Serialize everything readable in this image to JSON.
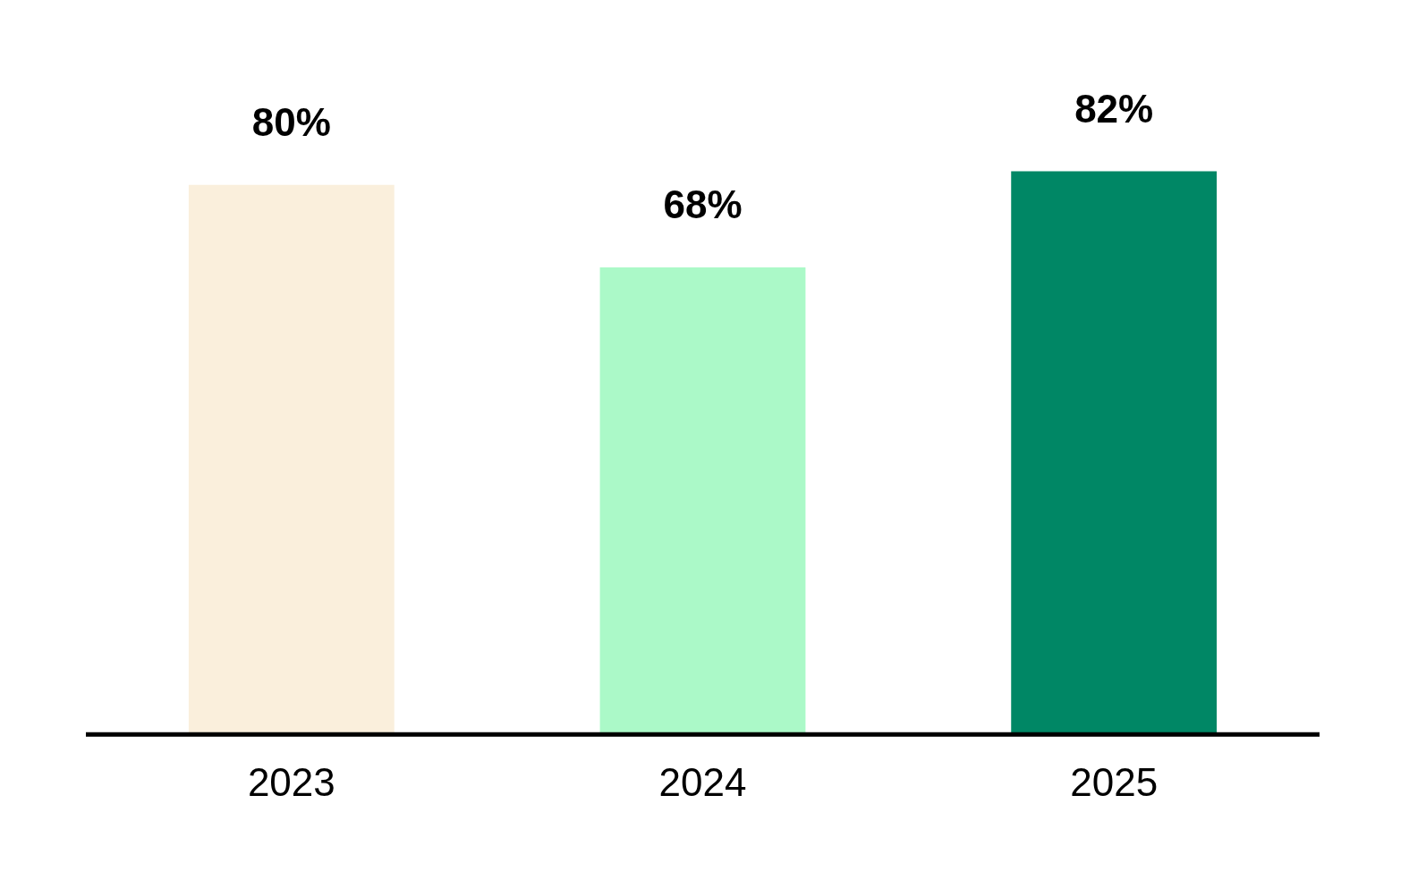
{
  "chart_data": {
    "type": "bar",
    "categories": [
      "2023",
      "2024",
      "2025"
    ],
    "values": [
      80,
      68,
      82
    ],
    "colors": [
      "#faefdc",
      "#abf9c8",
      "#008765"
    ],
    "value_labels": [
      "80%",
      "68%",
      "82%"
    ],
    "grid": false,
    "legend": false
  }
}
